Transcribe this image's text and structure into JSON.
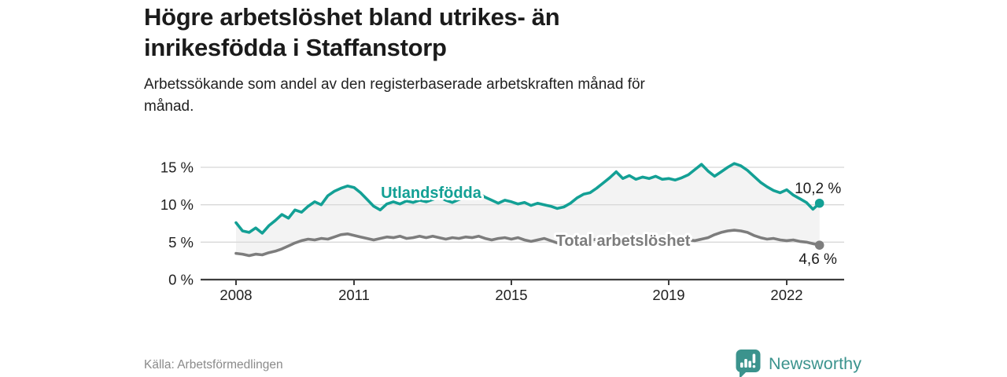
{
  "header": {
    "title_lines": [
      "Högre arbetslöshet bland utrikes- än",
      "inrikesfödda i Staffanstorp"
    ],
    "subtitle_lines": [
      "Arbetssökande som andel av den registerbaserade arbetskraften månad för",
      "månad."
    ]
  },
  "footer": {
    "source": "Källa: Arbetsförmedlingen",
    "brand": "Newsworthy"
  },
  "colors": {
    "accent_teal": "#13a095",
    "series_gray": "#7d7d7d",
    "band_fill": "#f3f3f3",
    "grid": "#d8d8d8",
    "axis": "#3d3d3d",
    "tick_text": "#1f1f1f",
    "end_label_text": "#1a1a1a",
    "title_text": "#1b1b1b",
    "muted_text": "#8a8a8a",
    "brand_teal": "#3b938d",
    "badge_glyph": "#ffffff"
  },
  "chart_data": {
    "type": "line",
    "title": "Högre arbetslöshet bland utrikes- än inrikesfödda i Staffanstorp",
    "subtitle": "Arbetssökande som andel av den registerbaserade arbetskraften månad för månad.",
    "xlabel": "",
    "ylabel": "",
    "unit": "%",
    "grid": true,
    "legend_position": "inline-labels",
    "x_start": 2008.0,
    "x_step": 0.166667,
    "x_domain": [
      2007.1,
      2023.46
    ],
    "ylim": [
      0,
      15
    ],
    "xtick_values": [
      2008,
      2011,
      2015,
      2019,
      2022
    ],
    "xtick_labels": [
      "2008",
      "2011",
      "2015",
      "2019",
      "2022"
    ],
    "ytick_values": [
      0,
      5,
      10,
      15
    ],
    "ytick_labels": [
      "0 %",
      "5 %",
      "10 %",
      "15 %"
    ],
    "source": "Källa: Arbetsförmedlingen",
    "series": [
      {
        "name": "Utlandsfödda",
        "color": "#13a095",
        "end_value": 10.2,
        "end_label": "10,2 %",
        "values": [
          7.6,
          6.5,
          6.3,
          6.9,
          6.2,
          7.2,
          7.9,
          8.7,
          8.2,
          9.3,
          9.0,
          9.8,
          10.4,
          10.0,
          11.2,
          11.8,
          12.2,
          12.5,
          12.3,
          11.6,
          10.7,
          9.8,
          9.3,
          10.1,
          10.4,
          10.1,
          10.5,
          10.3,
          10.6,
          10.4,
          10.7,
          11.0,
          10.6,
          10.3,
          10.7,
          11.0,
          11.3,
          11.5,
          11.0,
          10.6,
          10.2,
          10.6,
          10.4,
          10.1,
          10.3,
          9.9,
          10.2,
          10.0,
          9.8,
          9.5,
          9.7,
          10.2,
          10.9,
          11.4,
          11.6,
          12.2,
          12.9,
          13.6,
          14.4,
          13.5,
          13.9,
          13.4,
          13.7,
          13.5,
          13.8,
          13.4,
          13.5,
          13.3,
          13.6,
          14.0,
          14.7,
          15.4,
          14.5,
          13.8,
          14.4,
          15.0,
          15.5,
          15.2,
          14.6,
          13.8,
          13.0,
          12.4,
          11.9,
          11.6,
          12.0,
          11.3,
          10.8,
          10.3,
          9.4,
          10.2
        ]
      },
      {
        "name": "Total arbetslöshet",
        "color": "#7d7d7d",
        "end_value": 4.6,
        "end_label": "4,6 %",
        "values": [
          3.5,
          3.4,
          3.2,
          3.4,
          3.3,
          3.6,
          3.8,
          4.1,
          4.5,
          4.9,
          5.2,
          5.4,
          5.3,
          5.5,
          5.4,
          5.7,
          6.0,
          6.1,
          5.9,
          5.7,
          5.5,
          5.3,
          5.5,
          5.7,
          5.6,
          5.8,
          5.5,
          5.6,
          5.8,
          5.6,
          5.8,
          5.6,
          5.4,
          5.6,
          5.5,
          5.7,
          5.6,
          5.8,
          5.5,
          5.3,
          5.5,
          5.6,
          5.4,
          5.6,
          5.3,
          5.1,
          5.3,
          5.5,
          5.2,
          4.9,
          5.1,
          5.3,
          5.2,
          5.4,
          5.2,
          5.4,
          5.1,
          5.3,
          5.5,
          5.3,
          5.1,
          5.3,
          5.0,
          4.9,
          5.1,
          5.2,
          5.0,
          5.2,
          5.1,
          5.3,
          5.2,
          5.4,
          5.6,
          6.0,
          6.3,
          6.5,
          6.6,
          6.5,
          6.3,
          5.9,
          5.6,
          5.4,
          5.5,
          5.3,
          5.2,
          5.3,
          5.1,
          5.0,
          4.8,
          4.6
        ]
      }
    ]
  }
}
